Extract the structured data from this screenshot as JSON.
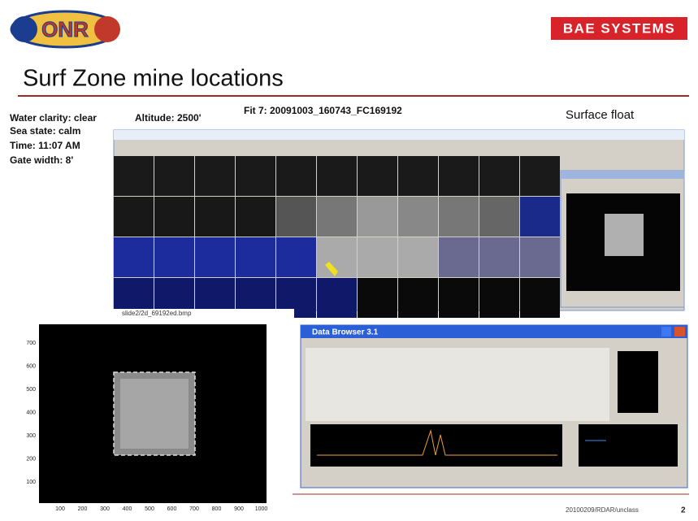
{
  "header": {
    "logo": "ONR",
    "brand": "BAE SYSTEMS",
    "title": "Surf Zone mine locations"
  },
  "conditions": [
    "Water clarity:  clear",
    "Sea state: calm",
    "Time: 11:07 AM",
    "Gate width:  8'"
  ],
  "altitude": "Altitude:  2500'",
  "fit": "Fit 7: 20091003_160743_FC169192",
  "annotation": "Surface float",
  "inset": {
    "filename": "slide2/2d_69192ed.bmp",
    "yticks": [
      700,
      600,
      500,
      400,
      300,
      200,
      100
    ],
    "xticks": [
      100,
      200,
      300,
      400,
      500,
      600,
      700,
      800,
      900,
      1000
    ]
  },
  "browser": {
    "title": "Data Browser 3.1"
  },
  "footer": {
    "code": "20100209/RDAR/unclass",
    "page": "2"
  }
}
